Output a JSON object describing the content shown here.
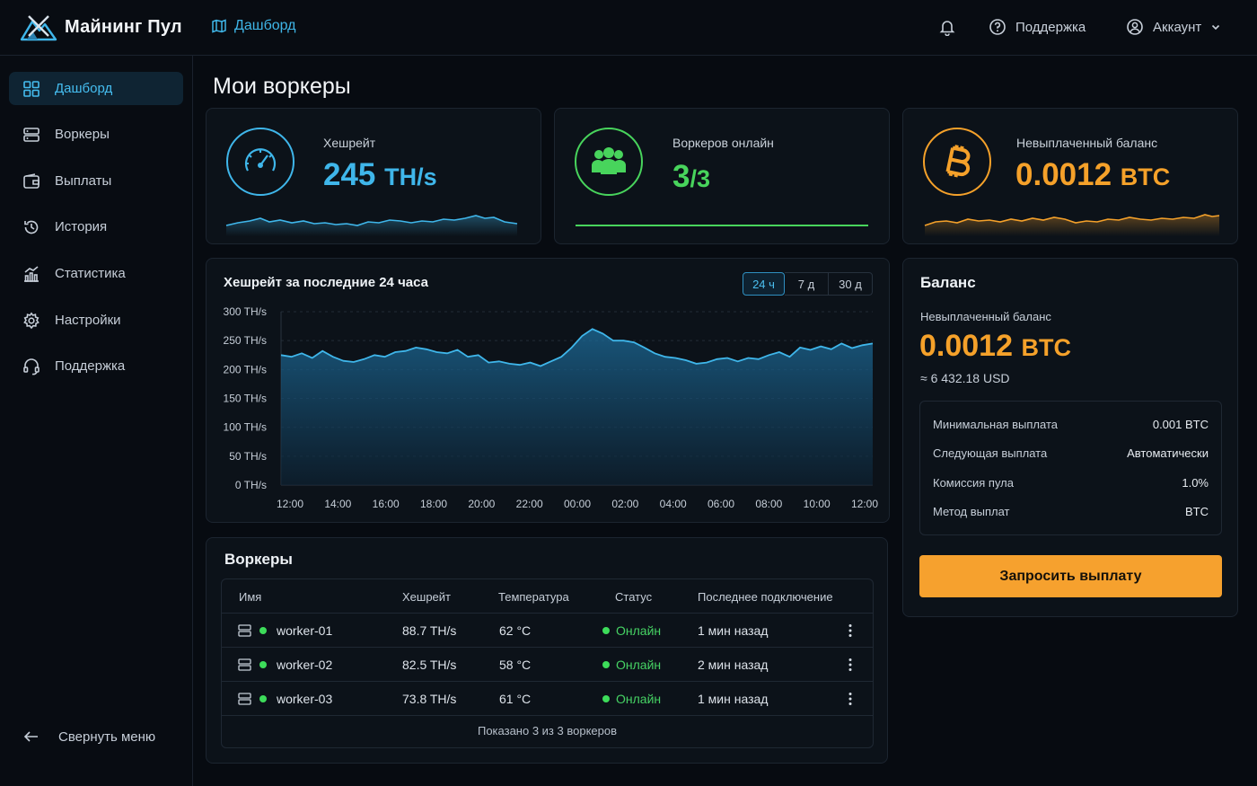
{
  "app": {
    "name": "Майнинг Пул"
  },
  "header": {
    "breadcrumb": "Дашборд",
    "support_label": "Поддержка",
    "account_label": "Аккаунт"
  },
  "sidebar": {
    "items": [
      {
        "label": "Дашборд",
        "icon": "grid-icon",
        "active": true
      },
      {
        "label": "Воркеры",
        "icon": "server-icon"
      },
      {
        "label": "Выплаты",
        "icon": "wallet-icon"
      },
      {
        "label": "История",
        "icon": "history-icon"
      },
      {
        "label": "Статистика",
        "icon": "stats-icon"
      },
      {
        "label": "Настройки",
        "icon": "gear-icon"
      },
      {
        "label": "Поддержка",
        "icon": "headset-icon"
      }
    ],
    "collapse_label": "Свернуть меню"
  },
  "page": {
    "title": "Мои воркеры"
  },
  "stats": {
    "hashrate": {
      "label": "Хешрейт",
      "value": "245",
      "unit": "TH/s",
      "color": "#3fb6ea"
    },
    "workers_online": {
      "label": "Воркеров онлайн",
      "value": "3",
      "total": "/3",
      "color": "#48d45c"
    },
    "unpaid": {
      "label": "Невыплаченный баланс",
      "value": "0.0012",
      "unit": "BTC",
      "color": "#f5a12a"
    }
  },
  "chart_data": {
    "type": "area",
    "title": "Хешрейт за последние 24 часа",
    "ranges": [
      "24 ч",
      "7 д",
      "30 д"
    ],
    "active_range": "24 ч",
    "y_ticks": [
      "300 TH/s",
      "250 TH/s",
      "200 TH/s",
      "150 TH/s",
      "100 TH/s",
      "50 TH/s",
      "0 TH/s"
    ],
    "x_ticks": [
      "12:00",
      "14:00",
      "16:00",
      "18:00",
      "20:00",
      "22:00",
      "00:00",
      "02:00",
      "04:00",
      "06:00",
      "08:00",
      "10:00",
      "12:00"
    ],
    "ylim": [
      0,
      300
    ],
    "grid": true,
    "series": [
      {
        "values": [
          225,
          222,
          228,
          220,
          232,
          222,
          215,
          213,
          218,
          225,
          222,
          230,
          232,
          238,
          235,
          230,
          228,
          234,
          222,
          225,
          212,
          214,
          210,
          208,
          212,
          206,
          214,
          222,
          238,
          258,
          270,
          262,
          250,
          250,
          247,
          238,
          228,
          222,
          220,
          216,
          210,
          212,
          218,
          220,
          214,
          220,
          218,
          225,
          230,
          222,
          238,
          234,
          240,
          235,
          245,
          237,
          242,
          245
        ]
      }
    ]
  },
  "balance": {
    "title": "Баланс",
    "subtitle": "Невыплаченный баланс",
    "value": "0.0012",
    "unit": "BTC",
    "usd": "≈ 6 432.18 USD",
    "rows": [
      {
        "label": "Минимальная выплата",
        "value": "0.001 BTC"
      },
      {
        "label": "Следующая выплата",
        "value": "Автоматически"
      },
      {
        "label": "Комиссия пула",
        "value": "1.0%"
      },
      {
        "label": "Метод выплат",
        "value": "BTC"
      }
    ],
    "button": "Запросить выплату"
  },
  "workers": {
    "title": "Воркеры",
    "columns": [
      "Имя",
      "Хешрейт",
      "Температура",
      "Статус",
      "Последнее подключение"
    ],
    "rows": [
      {
        "name": "worker-01",
        "hashrate": "88.7 TH/s",
        "temp": "62 °C",
        "status": "Онлайн",
        "last": "1 мин назад"
      },
      {
        "name": "worker-02",
        "hashrate": "82.5 TH/s",
        "temp": "58 °C",
        "status": "Онлайн",
        "last": "2 мин назад"
      },
      {
        "name": "worker-03",
        "hashrate": "73.8 TH/s",
        "temp": "61 °C",
        "status": "Онлайн",
        "last": "1 мин назад"
      }
    ],
    "footer": "Показано 3 из 3 воркеров"
  }
}
